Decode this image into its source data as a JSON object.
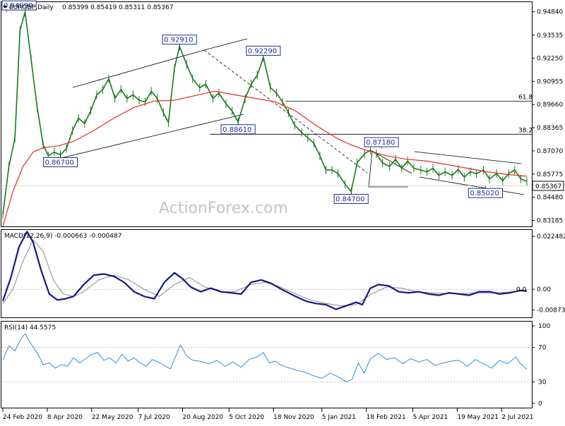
{
  "header": {
    "symbol": "EURGBP,Daily",
    "ohlc": "0.85399 0.85419 0.85311 0.85367"
  },
  "watermark": "ActionForex.com",
  "colors": {
    "candle": "#167a1a",
    "sma": "#e52a24",
    "macd": "#16168a",
    "signal": "#8a8a8a",
    "rsi": "#2a8fd8",
    "price_tag_stroke": "#1f2f8f"
  },
  "chart_data": [
    {
      "type": "line",
      "panel": "price",
      "ylim": [
        0.8285,
        0.9538
      ],
      "yticks": [
        "0.94840",
        "0.93535",
        "0.92250",
        "0.90955",
        "0.89660",
        "0.88365",
        "0.87070",
        "0.85775",
        "0.84480",
        "0.83185"
      ],
      "current_price": "0.85367",
      "xticks": [
        "24 Feb 2020",
        "8 Apr 2020",
        "22 May 2020",
        "7 Jul 2020",
        "20 Aug 2020",
        "5 Oct 2020",
        "18 Nov 2020",
        "5 Jan 2021",
        "18 Feb 2021",
        "5 Apr 2021",
        "19 May 2021",
        "2 Jul 2021"
      ],
      "xrange_days": [
        0,
        519
      ],
      "series": [
        {
          "style": "candles-as-close-line",
          "x": [
            0,
            6,
            12,
            17,
            22,
            28,
            34,
            40,
            45,
            51,
            57,
            63,
            69,
            75,
            81,
            87,
            93,
            99,
            105,
            111,
            117,
            123,
            129,
            135,
            141,
            147,
            153,
            159,
            164,
            170,
            175,
            182,
            188,
            195,
            201,
            208,
            214,
            221,
            227,
            233,
            240,
            246,
            252,
            258,
            265,
            271,
            277,
            283,
            289,
            296,
            302,
            308,
            314,
            320,
            326,
            332,
            339,
            345,
            351,
            358,
            364,
            370,
            376,
            383,
            389,
            395,
            401,
            407,
            414,
            420,
            426,
            432,
            438,
            445,
            451,
            457,
            463,
            469,
            476,
            482,
            489,
            495,
            501,
            507,
            513,
            519
          ],
          "y": [
            0.835,
            0.862,
            0.878,
            0.938,
            0.9482,
            0.922,
            0.895,
            0.874,
            0.868,
            0.87,
            0.8685,
            0.872,
            0.882,
            0.889,
            0.886,
            0.893,
            0.902,
            0.905,
            0.911,
            0.9,
            0.905,
            0.9,
            0.902,
            0.899,
            0.898,
            0.904,
            0.9,
            0.892,
            0.8865,
            0.917,
            0.9291,
            0.919,
            0.911,
            0.906,
            0.908,
            0.9,
            0.903,
            0.897,
            0.893,
            0.8869,
            0.9,
            0.908,
            0.913,
            0.9229,
            0.906,
            0.903,
            0.898,
            0.892,
            0.885,
            0.881,
            0.878,
            0.875,
            0.868,
            0.86,
            0.86,
            0.858,
            0.852,
            0.848,
            0.864,
            0.869,
            0.871,
            0.869,
            0.864,
            0.862,
            0.866,
            0.861,
            0.865,
            0.861,
            0.86,
            0.859,
            0.861,
            0.857,
            0.859,
            0.857,
            0.8603,
            0.856,
            0.859,
            0.858,
            0.86,
            0.855,
            0.858,
            0.854,
            0.858,
            0.86,
            0.855,
            0.8537
          ]
        },
        {
          "style": "moving-average",
          "x": [
            0,
            10,
            20,
            30,
            40,
            55,
            70,
            90,
            110,
            130,
            150,
            170,
            190,
            210,
            230,
            250,
            270,
            290,
            310,
            330,
            345,
            360,
            380,
            400,
            420,
            440,
            460,
            480,
            500,
            519
          ],
          "y": [
            0.8285,
            0.848,
            0.862,
            0.87,
            0.8725,
            0.8735,
            0.876,
            0.882,
            0.889,
            0.895,
            0.8985,
            0.899,
            0.9015,
            0.904,
            0.902,
            0.9,
            0.898,
            0.893,
            0.885,
            0.878,
            0.874,
            0.871,
            0.868,
            0.866,
            0.865,
            0.863,
            0.861,
            0.859,
            0.8575,
            0.8565
          ]
        }
      ],
      "annotations": [
        {
          "label": "0.94990",
          "x": 4,
          "y": 0.9482
        },
        {
          "label": "0.92910",
          "x": 175,
          "y": 0.9291
        },
        {
          "label": "0.92290",
          "x": 258,
          "y": 0.9229
        },
        {
          "label": "0.88610",
          "x": 233,
          "y": 0.8869
        },
        {
          "label": "0.86700",
          "x": 57,
          "y": 0.8685
        },
        {
          "label": "0.87180",
          "x": 375,
          "y": 0.8718
        },
        {
          "label": "0.84700",
          "x": 345,
          "y": 0.848
        },
        {
          "label": "0.85020",
          "x": 478,
          "y": 0.8513
        }
      ],
      "levels": [
        {
          "label": "61.8",
          "y": 0.8985,
          "from_x": 280
        },
        {
          "label": "38.2",
          "y": 0.88,
          "from_x": 205
        }
      ]
    },
    {
      "type": "line",
      "panel": "macd",
      "title": "MACD(12,26,9) -0.000663 -0.000487",
      "ylim": [
        -0.0119,
        0.0252
      ],
      "yticks": [
        "0.022482",
        "0.00",
        "-0.008736"
      ],
      "zero_label": "0.0",
      "series": [
        {
          "style": "macd",
          "x": [
            0,
            8,
            16,
            24,
            30,
            38,
            46,
            54,
            62,
            70,
            80,
            90,
            100,
            110,
            120,
            130,
            140,
            150,
            160,
            170,
            178,
            186,
            196,
            206,
            216,
            226,
            236,
            246,
            256,
            266,
            276,
            290,
            300,
            310,
            320,
            330,
            340,
            350,
            356,
            364,
            372,
            382,
            392,
            402,
            412,
            422,
            432,
            442,
            452,
            462,
            472,
            482,
            492,
            502,
            512,
            519
          ],
          "y": [
            -0.005,
            0.005,
            0.018,
            0.0245,
            0.02,
            0.008,
            -0.002,
            -0.0045,
            -0.004,
            -0.003,
            0.002,
            0.006,
            0.0065,
            0.0055,
            0.003,
            -0.001,
            -0.003,
            -0.004,
            0.003,
            0.007,
            0.0045,
            0.001,
            -0.001,
            0.0005,
            -0.001,
            -0.0015,
            -0.002,
            0.003,
            0.004,
            0.0025,
            0.0,
            -0.003,
            -0.005,
            -0.006,
            -0.0065,
            -0.0085,
            -0.007,
            -0.0055,
            -0.0065,
            0.0005,
            0.002,
            0.0015,
            -0.001,
            -0.0015,
            -0.001,
            -0.002,
            -0.0025,
            -0.0015,
            -0.002,
            -0.0025,
            -0.001,
            -0.001,
            -0.002,
            -0.0015,
            -0.0005,
            -0.0007
          ]
        },
        {
          "style": "signal",
          "x": [
            0,
            10,
            20,
            30,
            40,
            50,
            60,
            70,
            80,
            95,
            110,
            125,
            140,
            155,
            170,
            185,
            200,
            215,
            230,
            245,
            260,
            275,
            290,
            305,
            320,
            335,
            350,
            365,
            380,
            395,
            410,
            425,
            440,
            455,
            470,
            485,
            500,
            519
          ],
          "y": [
            -0.006,
            0.0,
            0.012,
            0.021,
            0.016,
            0.004,
            -0.002,
            -0.003,
            -0.001,
            0.004,
            0.006,
            0.004,
            0.0,
            -0.003,
            0.002,
            0.005,
            0.001,
            -0.001,
            -0.001,
            0.002,
            0.003,
            0.001,
            -0.002,
            -0.0045,
            -0.006,
            -0.007,
            -0.0065,
            -0.002,
            0.001,
            0.0005,
            -0.001,
            -0.0015,
            -0.0018,
            -0.0018,
            -0.0015,
            -0.0015,
            -0.0012,
            -0.0005
          ]
        }
      ]
    },
    {
      "type": "line",
      "panel": "rsi",
      "title": "RSI(14) 44.5575",
      "ylim": [
        0,
        100
      ],
      "yticks": [
        "100",
        "70",
        "30",
        "0"
      ],
      "levels": [
        70,
        30
      ],
      "series": [
        {
          "style": "rsi",
          "x": [
            0,
            6,
            12,
            18,
            22,
            28,
            34,
            40,
            46,
            52,
            58,
            64,
            70,
            76,
            82,
            88,
            94,
            100,
            106,
            112,
            118,
            124,
            130,
            136,
            142,
            148,
            154,
            160,
            166,
            172,
            176,
            182,
            188,
            196,
            204,
            212,
            220,
            228,
            236,
            244,
            252,
            258,
            264,
            270,
            276,
            284,
            292,
            300,
            308,
            316,
            324,
            332,
            340,
            346,
            352,
            358,
            364,
            372,
            380,
            388,
            396,
            404,
            412,
            420,
            428,
            436,
            444,
            452,
            460,
            468,
            476,
            484,
            492,
            500,
            508,
            512,
            519
          ],
          "y": [
            55,
            72,
            66,
            80,
            86,
            74,
            64,
            50,
            52,
            46,
            50,
            48,
            58,
            52,
            57,
            62,
            64,
            55,
            58,
            52,
            62,
            54,
            58,
            52,
            48,
            56,
            53,
            49,
            45,
            62,
            73,
            60,
            55,
            54,
            51,
            55,
            48,
            53,
            47,
            56,
            59,
            64,
            52,
            54,
            49,
            46,
            43,
            41,
            37,
            34,
            40,
            36,
            30,
            33,
            52,
            40,
            57,
            63,
            56,
            58,
            51,
            57,
            53,
            56,
            49,
            52,
            54,
            55,
            48,
            56,
            51,
            46,
            55,
            51,
            59,
            52,
            44.6
          ]
        }
      ]
    }
  ]
}
